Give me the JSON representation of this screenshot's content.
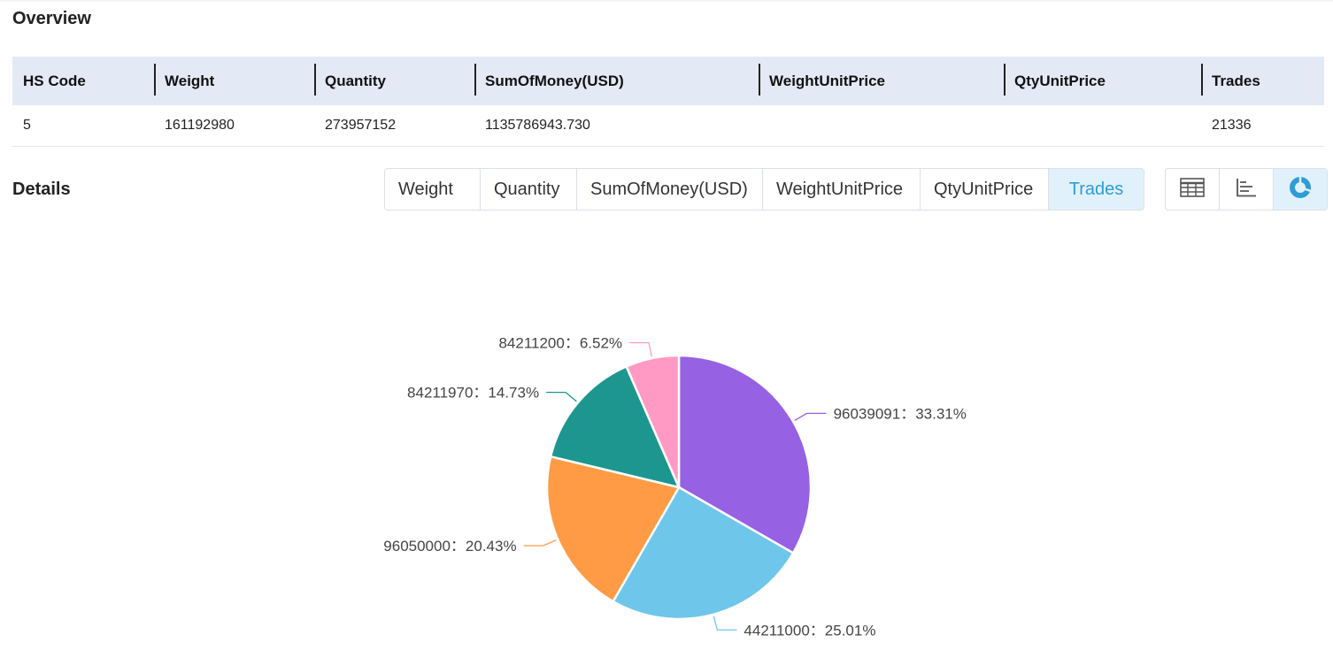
{
  "overview": {
    "title": "Overview",
    "headers": [
      "HS Code",
      "Weight",
      "Quantity",
      "SumOfMoney(USD)",
      "WeightUnitPrice",
      "QtyUnitPrice",
      "Trades"
    ],
    "row": [
      "5",
      "161192980",
      "273957152",
      "1135786943.730",
      "",
      "",
      "21336"
    ]
  },
  "details": {
    "title": "Details",
    "tabs": [
      "Weight",
      "Quantity",
      "SumOfMoney(USD)",
      "WeightUnitPrice",
      "QtyUnitPrice",
      "Trades"
    ],
    "active_tab": "Trades",
    "views": [
      "table-view-icon",
      "bar-chart-icon",
      "pie-chart-icon"
    ],
    "active_view": "pie-chart-icon"
  },
  "colors": {
    "accent": "#2f9cd6",
    "active_bg": "#e1f1fb",
    "header_bg": "#e4e9f6"
  },
  "chart_data": {
    "type": "pie",
    "series": [
      {
        "name": "96039091",
        "value": 33.31,
        "label": "96039091：33.31%",
        "color": "#9661e3"
      },
      {
        "name": "44211000",
        "value": 25.01,
        "label": "44211000：25.01%",
        "color": "#6ec6ea"
      },
      {
        "name": "96050000",
        "value": 20.43,
        "label": "96050000：20.43%",
        "color": "#ff9b45"
      },
      {
        "name": "84211970",
        "value": 14.73,
        "label": "84211970：14.73%",
        "color": "#1e9690"
      },
      {
        "name": "84211200",
        "value": 6.52,
        "label": "84211200：6.52%",
        "color": "#ff9ac4"
      }
    ]
  }
}
